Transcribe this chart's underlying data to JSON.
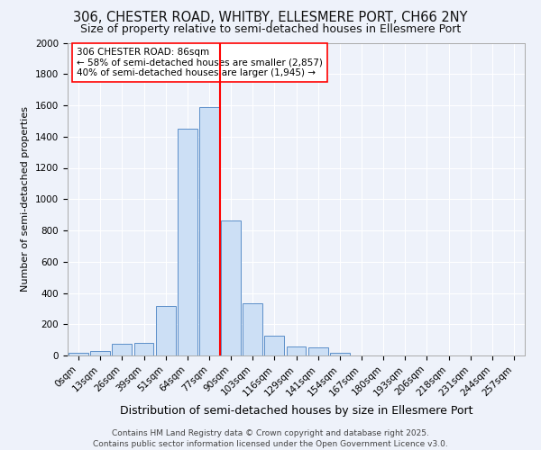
{
  "title_line1": "306, CHESTER ROAD, WHITBY, ELLESMERE PORT, CH66 2NY",
  "title_line2": "Size of property relative to semi-detached houses in Ellesmere Port",
  "xlabel": "Distribution of semi-detached houses by size in Ellesmere Port",
  "ylabel": "Number of semi-detached properties",
  "footer": "Contains HM Land Registry data © Crown copyright and database right 2025.\nContains public sector information licensed under the Open Government Licence v3.0.",
  "bar_labels": [
    "0sqm",
    "13sqm",
    "26sqm",
    "39sqm",
    "51sqm",
    "64sqm",
    "77sqm",
    "90sqm",
    "103sqm",
    "116sqm",
    "129sqm",
    "141sqm",
    "154sqm",
    "167sqm",
    "180sqm",
    "193sqm",
    "206sqm",
    "218sqm",
    "231sqm",
    "244sqm",
    "257sqm"
  ],
  "bar_values": [
    15,
    30,
    75,
    80,
    315,
    1450,
    1590,
    865,
    335,
    125,
    60,
    52,
    20,
    0,
    0,
    0,
    0,
    0,
    0,
    0,
    0
  ],
  "bar_color": "#ccdff5",
  "bar_edge_color": "#5b8fc9",
  "annotation_text": "306 CHESTER ROAD: 86sqm\n← 58% of semi-detached houses are smaller (2,857)\n40% of semi-detached houses are larger (1,945) →",
  "ylim": [
    0,
    2000
  ],
  "red_line_x": 7,
  "bg_color": "#eef2fa",
  "plot_bg_color": "#eef2fa",
  "grid_color": "#ffffff",
  "title1_fontsize": 10.5,
  "title2_fontsize": 9,
  "ylabel_fontsize": 8,
  "xlabel_fontsize": 9,
  "tick_fontsize": 7.5,
  "annot_fontsize": 7.5,
  "footer_fontsize": 6.5
}
